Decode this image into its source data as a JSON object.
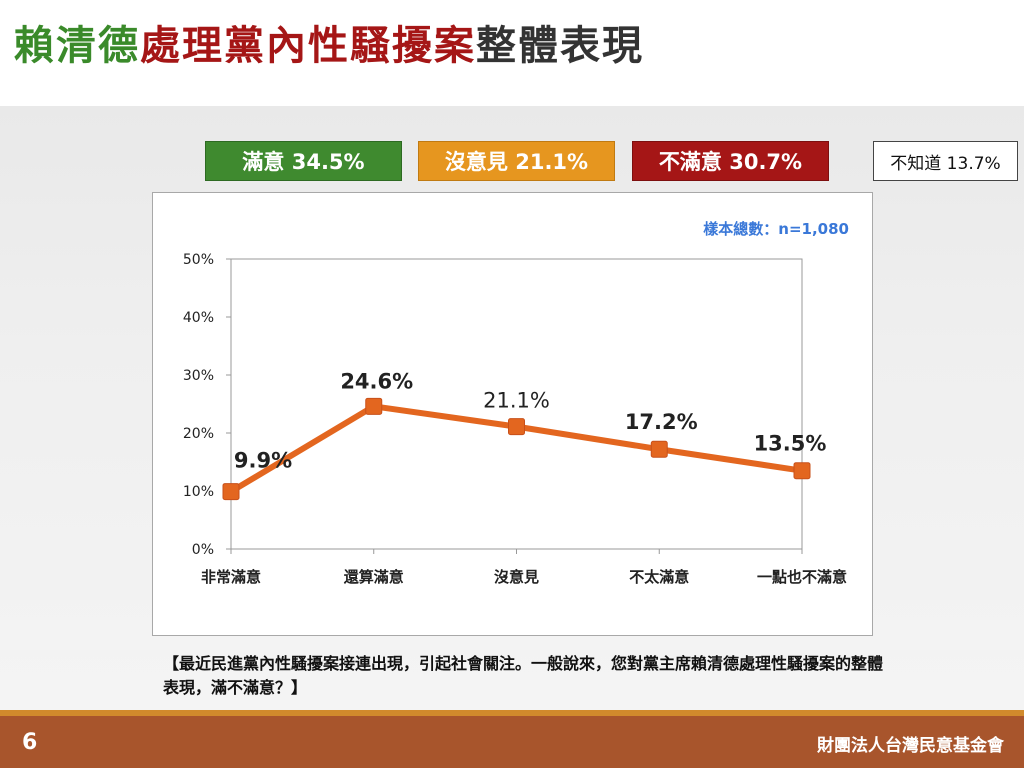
{
  "title": {
    "segments": [
      {
        "text": "賴清德",
        "color": "#3a8a2a"
      },
      {
        "text": "處理黨內性騷擾案",
        "color": "#a51616"
      },
      {
        "text": "整體表現",
        "color": "#333333"
      }
    ]
  },
  "legend": {
    "satisfied": "滿意 34.5%",
    "no_opinion": "沒意見 21.1%",
    "dissatisfied": "不滿意 30.7%",
    "unknown": "不知道 13.7%"
  },
  "colors": {
    "satisfied": "#3f8a2f",
    "no_opinion": "#e6961f",
    "dissatisfied": "#a51616",
    "line": "#e3661f",
    "footer": "#a8552c"
  },
  "chart_data": {
    "type": "line",
    "sample_note": "樣本總數：n=1,080",
    "categories": [
      "非常滿意",
      "還算滿意",
      "沒意見",
      "不太滿意",
      "一點也不滿意"
    ],
    "values": [
      9.9,
      24.6,
      21.1,
      17.2,
      13.5
    ],
    "value_labels": [
      "9.9%",
      "24.6%",
      "21.1%",
      "17.2%",
      "13.5%"
    ],
    "y_ticks": [
      "0%",
      "10%",
      "20%",
      "30%",
      "40%",
      "50%"
    ],
    "ylim": [
      0,
      50
    ],
    "grid": false,
    "line_color": "#e3661f",
    "marker_color": "#e3661f"
  },
  "question": "【最近民進黨內性騷擾案接連出現，引起社會關注。一般說來，您對黨主席賴清德處理性騷擾案的整體表現，滿不滿意？】",
  "footer": {
    "page_number": "6",
    "organization": "財團法人台灣民意基金會"
  }
}
